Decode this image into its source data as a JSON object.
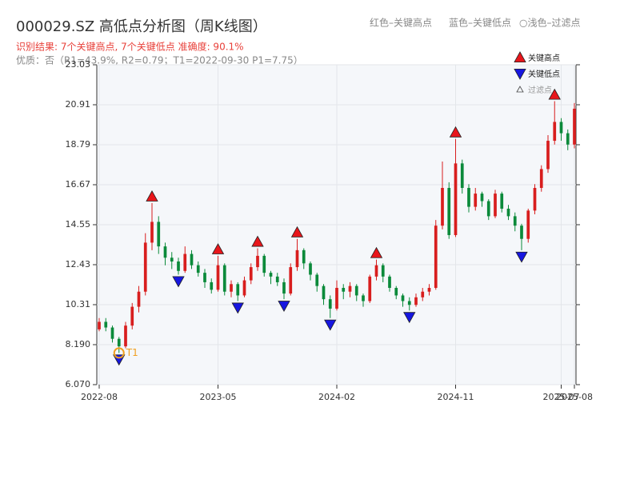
{
  "chart_data": {
    "type": "candlestick",
    "title": "000029.SZ 高低点分析图（周K线图）",
    "subtitle": "识别结果: 7个关键高点, 7个关键低点  准确度: 90.1%",
    "note": "优质：否（R1=43.9%, R2=0.79；T1=2022-09-30 P1=7.75）",
    "header_legend": [
      "红色–关键高点",
      "蓝色–关键低点",
      "○浅色–过滤点"
    ],
    "up_color": "#d81e1e",
    "down_color": "#0b8a3a",
    "x": [
      "2022-08",
      "2022-08",
      "2022-09",
      "2022-09",
      "2022-10",
      "2022-10",
      "2022-11",
      "2022-11",
      "2022-12",
      "2022-12",
      "2023-01",
      "2023-01",
      "2023-02",
      "2023-02",
      "2023-03",
      "2023-03",
      "2023-04",
      "2023-04",
      "2023-05",
      "2023-05",
      "2023-06",
      "2023-06",
      "2023-07",
      "2023-07",
      "2023-08",
      "2023-08",
      "2023-09",
      "2023-09",
      "2023-10",
      "2023-10",
      "2023-11",
      "2023-11",
      "2023-12",
      "2023-12",
      "2024-01",
      "2024-01",
      "2024-02",
      "2024-02",
      "2024-03",
      "2024-03",
      "2024-04",
      "2024-04",
      "2024-05",
      "2024-05",
      "2024-06",
      "2024-06",
      "2024-07",
      "2024-07",
      "2024-08",
      "2024-08",
      "2024-09",
      "2024-09",
      "2024-10",
      "2024-10",
      "2024-11",
      "2024-11",
      "2024-12",
      "2024-12",
      "2025-01",
      "2025-01",
      "2025-02",
      "2025-02",
      "2025-03",
      "2025-03",
      "2025-04",
      "2025-04",
      "2025-05",
      "2025-05",
      "2025-06",
      "2025-06",
      "2025-07",
      "2025-07",
      "2025-08"
    ],
    "open": [
      9.0,
      9.4,
      9.1,
      8.5,
      8.1,
      9.2,
      10.2,
      11.0,
      13.6,
      14.7,
      13.4,
      12.8,
      12.6,
      12.1,
      13.0,
      12.4,
      12.0,
      11.5,
      11.1,
      12.4,
      11.0,
      11.4,
      10.8,
      11.6,
      12.3,
      12.9,
      12.0,
      11.8,
      11.5,
      10.9,
      12.3,
      13.2,
      12.5,
      11.9,
      11.3,
      10.6,
      10.1,
      11.2,
      11.0,
      11.3,
      10.8,
      10.5,
      11.8,
      12.4,
      11.8,
      11.2,
      10.8,
      10.5,
      10.3,
      10.7,
      11.0,
      11.2,
      14.5,
      16.5,
      14.0,
      17.8,
      16.5,
      15.5,
      16.2,
      15.8,
      15.0,
      16.2,
      15.4,
      15.0,
      14.5,
      13.8,
      15.3,
      16.5,
      17.5,
      19.0,
      20.0,
      19.4,
      18.8
    ],
    "high": [
      9.6,
      9.6,
      9.2,
      8.6,
      9.4,
      10.4,
      11.3,
      14.1,
      15.7,
      15.0,
      13.6,
      13.1,
      12.8,
      13.4,
      13.2,
      12.6,
      12.2,
      11.7,
      12.9,
      12.5,
      11.6,
      11.5,
      11.8,
      12.5,
      13.3,
      13.0,
      12.1,
      12.0,
      11.7,
      12.5,
      13.8,
      13.3,
      12.6,
      12.0,
      11.4,
      10.8,
      11.6,
      11.4,
      11.5,
      11.4,
      10.9,
      11.9,
      12.7,
      12.5,
      11.9,
      11.3,
      10.9,
      10.7,
      10.9,
      11.2,
      11.4,
      14.8,
      17.9,
      16.8,
      19.1,
      18.0,
      16.7,
      16.5,
      16.3,
      15.9,
      16.4,
      16.3,
      15.6,
      15.2,
      14.6,
      15.4,
      16.7,
      17.7,
      19.3,
      21.1,
      20.2,
      19.6,
      21.0
    ],
    "low": [
      8.9,
      8.9,
      8.3,
      7.75,
      8.0,
      9.0,
      9.9,
      10.8,
      13.2,
      13.0,
      12.4,
      12.2,
      11.9,
      12.0,
      12.2,
      11.8,
      11.2,
      10.9,
      11.0,
      10.8,
      10.7,
      10.5,
      10.7,
      11.4,
      12.1,
      11.8,
      11.4,
      11.3,
      10.6,
      10.8,
      12.1,
      12.2,
      11.6,
      11.0,
      10.3,
      9.6,
      10.0,
      10.6,
      10.7,
      10.5,
      10.2,
      10.4,
      11.6,
      11.5,
      11.0,
      10.6,
      10.2,
      10.0,
      10.2,
      10.5,
      10.8,
      11.1,
      14.3,
      13.8,
      13.9,
      16.2,
      15.2,
      15.3,
      15.5,
      14.8,
      14.9,
      15.2,
      14.8,
      14.2,
      13.2,
      13.6,
      15.1,
      16.3,
      17.3,
      18.8,
      19.0,
      18.5,
      18.6
    ],
    "close": [
      9.4,
      9.1,
      8.5,
      8.1,
      9.2,
      10.2,
      11.0,
      13.6,
      14.7,
      13.4,
      12.8,
      12.6,
      12.1,
      13.0,
      12.4,
      12.0,
      11.5,
      11.1,
      12.4,
      11.0,
      11.4,
      10.8,
      11.6,
      12.3,
      12.9,
      12.0,
      11.8,
      11.5,
      10.9,
      12.3,
      13.2,
      12.5,
      11.9,
      11.3,
      10.6,
      10.1,
      11.2,
      11.0,
      11.3,
      10.8,
      10.5,
      11.8,
      12.4,
      11.8,
      11.2,
      10.8,
      10.5,
      10.3,
      10.7,
      11.0,
      11.2,
      14.5,
      16.5,
      14.0,
      17.8,
      16.5,
      15.5,
      16.2,
      15.8,
      15.0,
      16.2,
      15.4,
      15.0,
      14.5,
      13.8,
      15.3,
      16.5,
      17.5,
      19.0,
      20.0,
      19.4,
      18.8,
      20.7
    ],
    "ylim": [
      6.07,
      23.03
    ],
    "yticks": [
      {
        "value": 6.07,
        "label": "6.070"
      },
      {
        "value": 8.19,
        "label": "8.190"
      },
      10.31,
      12.43,
      14.55,
      16.67,
      18.79,
      20.91,
      23.03
    ],
    "xticks": [
      "2022-08",
      "2023-05",
      "2024-02",
      "2024-11",
      "2025-07",
      "2025-08"
    ],
    "grid": true,
    "key_highs": {
      "name": "关键高点",
      "color": "#e8161b",
      "x": [
        "2022-12",
        "2023-05",
        "2023-08",
        "2023-11",
        "2024-05",
        "2024-11",
        "2025-06"
      ],
      "values": [
        15.7,
        12.9,
        13.3,
        13.8,
        12.7,
        19.1,
        21.1
      ]
    },
    "key_lows": {
      "name": "关键低点",
      "color": "#1616e0",
      "x": [
        "2022-09",
        "2023-02",
        "2023-06",
        "2023-10",
        "2024-01",
        "2024-07",
        "2025-04"
      ],
      "values": [
        7.75,
        11.9,
        10.5,
        10.6,
        9.6,
        10.0,
        13.2
      ]
    },
    "filtered": {
      "name": "过滤点"
    },
    "annotation": {
      "text": "T1",
      "x": "2022-09",
      "value": 7.75,
      "color": "#f0a020"
    },
    "legend": "upper right"
  }
}
